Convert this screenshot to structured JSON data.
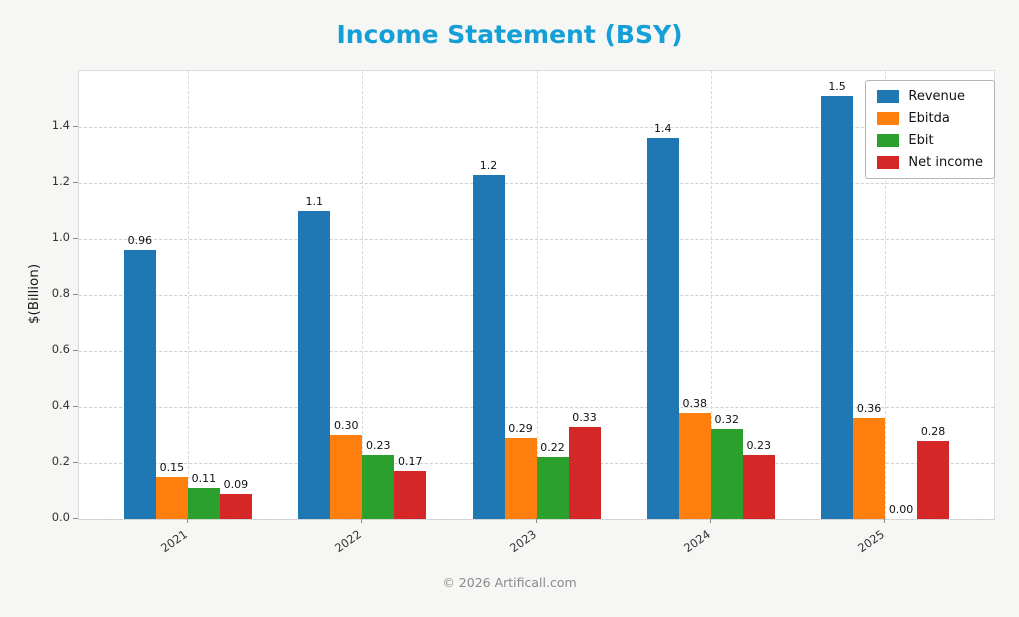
{
  "chart_data": {
    "type": "bar",
    "title": "Income Statement (BSY)",
    "title_color": "#14a0d6",
    "ylabel": "$(Billion)",
    "xlabel": "",
    "categories": [
      "2021",
      "2022",
      "2023",
      "2024",
      "2025"
    ],
    "series": [
      {
        "name": "Revenue",
        "color": "#1f77b4",
        "values": [
          0.96,
          1.1,
          1.23,
          1.36,
          1.51
        ],
        "labels": [
          "0.96",
          "1.1",
          "1.2",
          "1.4",
          "1.5"
        ]
      },
      {
        "name": "Ebitda",
        "color": "#ff7f0e",
        "values": [
          0.15,
          0.3,
          0.29,
          0.38,
          0.36
        ],
        "labels": [
          "0.15",
          "0.30",
          "0.29",
          "0.38",
          "0.36"
        ]
      },
      {
        "name": "Ebit",
        "color": "#2ca02c",
        "values": [
          0.11,
          0.23,
          0.22,
          0.32,
          0.0
        ],
        "labels": [
          "0.11",
          "0.23",
          "0.22",
          "0.32",
          "0.00"
        ]
      },
      {
        "name": "Net income",
        "color": "#d62728",
        "values": [
          0.09,
          0.17,
          0.33,
          0.23,
          0.28
        ],
        "labels": [
          "0.09",
          "0.17",
          "0.33",
          "0.23",
          "0.28"
        ]
      }
    ],
    "ylim": [
      0,
      1.6
    ],
    "yticks": [
      0.0,
      0.2,
      0.4,
      0.6,
      0.8,
      1.0,
      1.2,
      1.4
    ],
    "grid": "dashed",
    "legend_position": "upper right"
  },
  "footer": "© 2026 Artificall.com"
}
